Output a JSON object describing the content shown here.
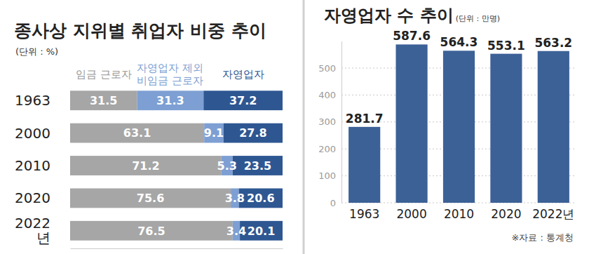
{
  "chart_data": [
    {
      "type": "bar",
      "title": "종사상 지위별 취업자 비중 추이",
      "subtitle": "(단위 : %)",
      "orientation": "horizontal",
      "stacked": true,
      "data_labels": true,
      "tick_labels": "y",
      "categories": [
        "1963",
        "2000",
        "2010",
        "2020",
        "2022\n년"
      ],
      "series": [
        {
          "name": "임금 근로자",
          "color": "#a6a6a6",
          "values": [
            31.5,
            63.1,
            71.2,
            75.6,
            76.5
          ]
        },
        {
          "name": "자영업자 제외\n비임금 근로자",
          "color": "#7d9fd3",
          "values": [
            31.3,
            9.1,
            5.3,
            3.8,
            3.4
          ]
        },
        {
          "name": "자영업자",
          "color": "#2e5792",
          "values": [
            37.2,
            27.8,
            23.5,
            20.6,
            20.1
          ]
        }
      ],
      "xlim": [
        0,
        100
      ]
    },
    {
      "type": "bar",
      "title": "자영업자 수 추이",
      "subtitle": "(단위 : 만명)",
      "categories": [
        "1963",
        "2000",
        "2010",
        "2020",
        "2022년"
      ],
      "values": [
        281.7,
        587.6,
        564.3,
        553.1,
        563.2
      ],
      "color": "#3c6197",
      "ylim": [
        0,
        600
      ],
      "yticks": [
        0,
        100,
        200,
        300,
        400,
        500
      ],
      "grid": true,
      "data_labels": true,
      "annotations": [
        "※자료 : 통계청"
      ]
    }
  ]
}
